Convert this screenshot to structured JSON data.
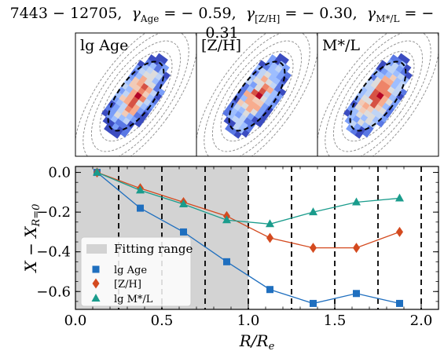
{
  "title": {
    "galaxy_id": "7443 − 12705",
    "gamma_age_label": "γ",
    "gamma_age_sub": "Age",
    "gamma_age_value": "= − 0.59",
    "gamma_zh_label": "γ",
    "gamma_zh_sub": "[Z/H]",
    "gamma_zh_value": "= − 0.30",
    "gamma_ml_label": "γ",
    "gamma_ml_sub": "M*/L",
    "gamma_ml_value": "= − 0.31"
  },
  "maps": [
    {
      "label": "lg Age",
      "cmap": "coolwarm"
    },
    {
      "label": "[Z/H]",
      "cmap": "coolwarm"
    },
    {
      "label": "M*/L",
      "cmap": "coolwarm"
    }
  ],
  "colors": {
    "lg_age": "#1f6fbf",
    "zh": "#d44a1f",
    "ml": "#1a9c8c",
    "fitting_range": "#d3d3d3",
    "cool": "#3b6fd9",
    "warm": "#c0282c"
  },
  "chart_data": {
    "type": "line",
    "xlabel": "R/R_e",
    "ylabel": "X − X_{R=0}",
    "xlim": [
      0.0,
      2.1
    ],
    "ylim": [
      -0.69,
      0.03
    ],
    "x_ticks": [
      "0.0",
      "0.5",
      "1.0",
      "1.5",
      "2.0"
    ],
    "y_ticks": [
      "0.0",
      "−0.2",
      "−0.4",
      "−0.6"
    ],
    "fitting_range": [
      0.0,
      1.0
    ],
    "vertical_dashed_lines": [
      0.25,
      0.5,
      0.75,
      1.0,
      1.25,
      1.5,
      1.75,
      2.0
    ],
    "x": [
      0.125,
      0.375,
      0.625,
      0.875,
      1.125,
      1.375,
      1.625,
      1.875
    ],
    "series": [
      {
        "name": "lg Age",
        "marker": "square",
        "values": [
          0.0,
          -0.18,
          -0.3,
          -0.45,
          -0.59,
          -0.66,
          -0.61,
          -0.66
        ]
      },
      {
        "name": "[Z/H]",
        "marker": "diamond",
        "values": [
          0.0,
          -0.08,
          -0.15,
          -0.22,
          -0.33,
          -0.38,
          -0.38,
          -0.3
        ]
      },
      {
        "name": "lg M*/L",
        "marker": "triangle",
        "values": [
          0.0,
          -0.09,
          -0.16,
          -0.24,
          -0.26,
          -0.2,
          -0.15,
          -0.13
        ]
      }
    ],
    "legend": {
      "placement": "lower-left",
      "entries": [
        "Fitting range",
        "lg Age",
        "[Z/H]",
        "lg M*/L"
      ]
    },
    "grid": false
  }
}
